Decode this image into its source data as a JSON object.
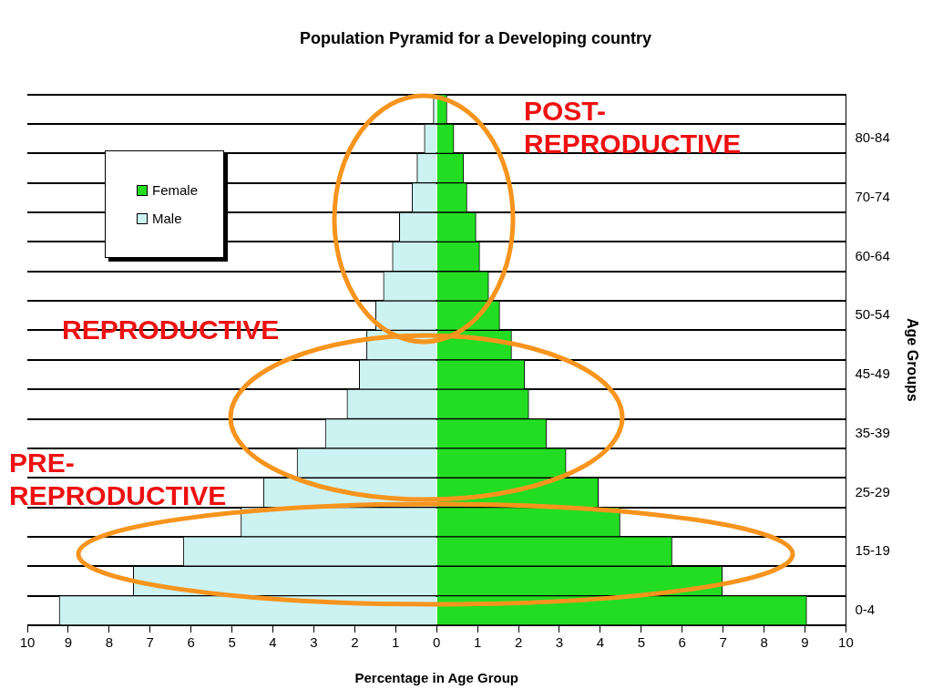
{
  "chart_data": {
    "type": "bar",
    "orientation": "horizontal",
    "stacked": true,
    "title": "Population Pyramid for a Developing country",
    "xlabel": "Percentage in Age Group",
    "ylabel": "Age Groups",
    "categories": [
      null,
      "80-84",
      null,
      "70-74",
      null,
      "60-64",
      null,
      "50-54",
      null,
      "45-49",
      null,
      "35-39",
      null,
      "25-29",
      null,
      "15-19",
      null,
      "0-4"
    ],
    "series": [
      {
        "name": "Female",
        "color": "#22dd22",
        "values": [
          0.25,
          0.42,
          0.66,
          0.74,
          0.96,
          1.05,
          1.27,
          1.54,
          1.83,
          2.15,
          2.25,
          2.68,
          3.16,
          3.95,
          4.48,
          5.75,
          6.98,
          9.04
        ]
      },
      {
        "name": "Male",
        "color": "#ccf2f2",
        "values": [
          -0.08,
          -0.3,
          -0.48,
          -0.6,
          -0.91,
          -1.08,
          -1.3,
          -1.49,
          -1.71,
          -1.89,
          -2.19,
          -2.72,
          -3.41,
          -4.23,
          -4.78,
          -6.19,
          -7.41,
          -9.22
        ]
      }
    ],
    "xlim": [
      -10,
      10
    ],
    "xticks": [
      {
        "value": -10,
        "label": "10"
      },
      {
        "value": -9,
        "label": "9"
      },
      {
        "value": -8,
        "label": "8"
      },
      {
        "value": -7,
        "label": "7"
      },
      {
        "value": -6,
        "label": "6"
      },
      {
        "value": -5,
        "label": "5"
      },
      {
        "value": -4,
        "label": "4"
      },
      {
        "value": -3,
        "label": "3"
      },
      {
        "value": -2,
        "label": "2"
      },
      {
        "value": -1,
        "label": "1"
      },
      0,
      1,
      2,
      3,
      4,
      5,
      6,
      7,
      8,
      9,
      10
    ],
    "grid": "y",
    "legend": "top left",
    "annotations": [
      "POST-\nREPRODUCTIVE",
      "REPRODUCTIVE",
      "PRE-\nREPRODUCTIVE"
    ]
  }
}
